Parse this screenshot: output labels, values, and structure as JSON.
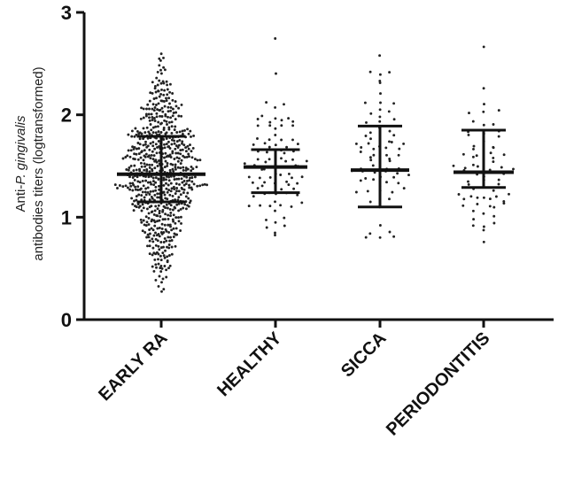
{
  "chart_data": {
    "type": "scatter",
    "subtype": "dot-plot with median and interquartile range",
    "title": "",
    "ylabel": {
      "line1_prefix": "Anti-",
      "line1_italic": "P. gingivalis",
      "line2": "antibodies titers (logtransformed)"
    },
    "xlabel": "",
    "ylim": [
      0,
      3
    ],
    "yticks": [
      0,
      1,
      2,
      3
    ],
    "grid": false,
    "legend": "none",
    "colors": {
      "points": "#222222",
      "bars": "#111111"
    },
    "categories": [
      "EARLY RA",
      "HEALTHY",
      "SICCA",
      "PERIODONTITIS"
    ],
    "groups": [
      {
        "category": "EARLY RA",
        "median": 1.42,
        "q1": 1.15,
        "q3": 1.79,
        "n": 700,
        "min": 0.28,
        "max": 2.6
      },
      {
        "category": "HEALTHY",
        "median": 1.49,
        "q1": 1.24,
        "q3": 1.66,
        "n": 90,
        "min": 0.83,
        "max": 2.74
      },
      {
        "category": "SICCA",
        "median": 1.46,
        "q1": 1.1,
        "q3": 1.89,
        "n": 75,
        "min": 0.8,
        "max": 2.58
      },
      {
        "category": "PERIODONTITIS",
        "median": 1.44,
        "q1": 1.29,
        "q3": 1.85,
        "n": 70,
        "min": 0.76,
        "max": 2.66
      }
    ]
  }
}
